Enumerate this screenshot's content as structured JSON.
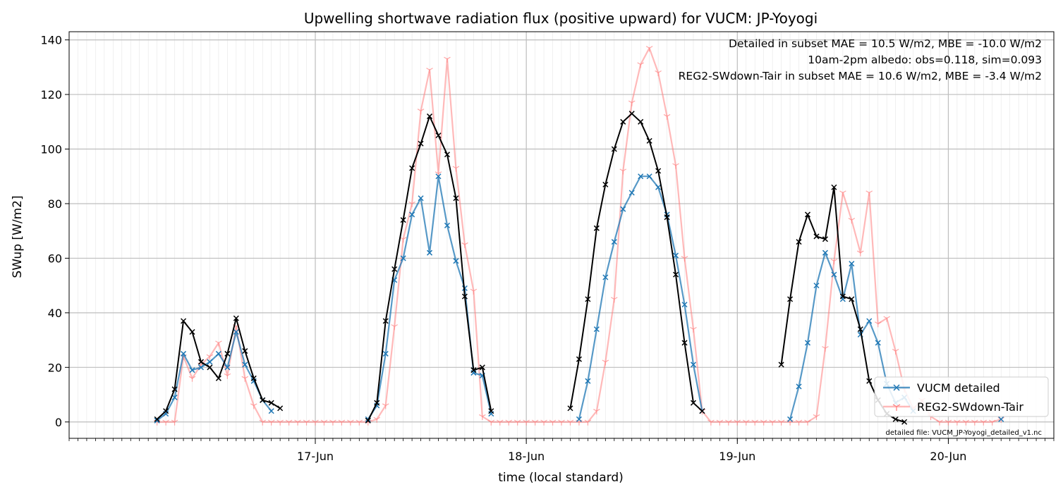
{
  "chart_data": {
    "type": "line",
    "title": "Upwelling shortwave radiation flux (positive upward) for VUCM: JP-Yoyogi",
    "xlabel": "time (local standard)",
    "ylabel": "SWup [W/m2]",
    "xlim": [
      "2021-06-15 20:00",
      "2021-06-20 12:00"
    ],
    "ylim": [
      -6,
      143
    ],
    "yticks": [
      0,
      20,
      40,
      60,
      80,
      100,
      120,
      140
    ],
    "xticks": [
      {
        "t": "2021-06-17 00:00",
        "label": "17-Jun"
      },
      {
        "t": "2021-06-18 00:00",
        "label": "18-Jun"
      },
      {
        "t": "2021-06-19 00:00",
        "label": "19-Jun"
      },
      {
        "t": "2021-06-20 00:00",
        "label": "20-Jun"
      }
    ],
    "grid": true,
    "legend_position": "lower-right",
    "annotations": [
      {
        "text": "Detailed in subset MAE = 10.5 W/m2, MBE = -10.0 W/m2",
        "color": "#1f77b4"
      },
      {
        "text": "10am-2pm albedo: obs=0.118, sim=0.093",
        "color": "#000000"
      },
      {
        "text": "REG2-SWdown-Tair in subset MAE = 10.6 W/m2, MBE = -3.4 W/m2",
        "color": "#ff0000"
      }
    ],
    "footnote": "detailed file: VUCM_JP-Yoyogi_detailed_v1.nc",
    "series": [
      {
        "name": "REG2-SWdown-Tair",
        "color": "#ff8080",
        "marker": "tri",
        "legend": true,
        "t": [
          "2021-06-16 06:00",
          "2021-06-16 07:00",
          "2021-06-16 08:00",
          "2021-06-16 09:00",
          "2021-06-16 10:00",
          "2021-06-16 11:00",
          "2021-06-16 12:00",
          "2021-06-16 13:00",
          "2021-06-16 14:00",
          "2021-06-16 15:00",
          "2021-06-16 16:00",
          "2021-06-16 17:00",
          "2021-06-16 18:00",
          "2021-06-16 19:00",
          "2021-06-16 20:00",
          "2021-06-16 21:00",
          "2021-06-16 22:00",
          "2021-06-16 23:00",
          "2021-06-17 00:00",
          "2021-06-17 01:00",
          "2021-06-17 02:00",
          "2021-06-17 03:00",
          "2021-06-17 04:00",
          "2021-06-17 05:00",
          "2021-06-17 06:00",
          "2021-06-17 07:00",
          "2021-06-17 08:00",
          "2021-06-17 09:00",
          "2021-06-17 10:00",
          "2021-06-17 11:00",
          "2021-06-17 12:00",
          "2021-06-17 13:00",
          "2021-06-17 14:00",
          "2021-06-17 15:00",
          "2021-06-17 16:00",
          "2021-06-17 17:00",
          "2021-06-17 18:00",
          "2021-06-17 19:00",
          "2021-06-17 20:00",
          "2021-06-17 21:00",
          "2021-06-17 22:00",
          "2021-06-17 23:00",
          "2021-06-18 00:00",
          "2021-06-18 01:00",
          "2021-06-18 02:00",
          "2021-06-18 03:00",
          "2021-06-18 04:00",
          "2021-06-18 05:00",
          "2021-06-18 06:00",
          "2021-06-18 07:00",
          "2021-06-18 08:00",
          "2021-06-18 09:00",
          "2021-06-18 10:00",
          "2021-06-18 11:00",
          "2021-06-18 12:00",
          "2021-06-18 13:00",
          "2021-06-18 14:00",
          "2021-06-18 15:00",
          "2021-06-18 16:00",
          "2021-06-18 17:00",
          "2021-06-18 18:00",
          "2021-06-18 19:00",
          "2021-06-18 20:00",
          "2021-06-18 21:00",
          "2021-06-18 22:00",
          "2021-06-18 23:00",
          "2021-06-19 00:00",
          "2021-06-19 01:00",
          "2021-06-19 02:00",
          "2021-06-19 03:00",
          "2021-06-19 04:00",
          "2021-06-19 05:00",
          "2021-06-19 06:00",
          "2021-06-19 07:00",
          "2021-06-19 08:00",
          "2021-06-19 09:00",
          "2021-06-19 10:00",
          "2021-06-19 11:00",
          "2021-06-19 12:00",
          "2021-06-19 13:00",
          "2021-06-19 14:00",
          "2021-06-19 15:00",
          "2021-06-19 16:00",
          "2021-06-19 17:00",
          "2021-06-19 18:00",
          "2021-06-19 19:00",
          "2021-06-19 20:00",
          "2021-06-19 21:00",
          "2021-06-19 22:00",
          "2021-06-19 23:00",
          "2021-06-20 00:00",
          "2021-06-20 01:00",
          "2021-06-20 02:00",
          "2021-06-20 03:00",
          "2021-06-20 04:00",
          "2021-06-20 05:00",
          "2021-06-20 06:00"
        ],
        "values": [
          0,
          0,
          0,
          24,
          16,
          21,
          24,
          29,
          17,
          35,
          16,
          6,
          0,
          0,
          0,
          0,
          0,
          0,
          0,
          0,
          0,
          0,
          0,
          0,
          0,
          1,
          6,
          35,
          67,
          80,
          114,
          129,
          91,
          133,
          93,
          65,
          48,
          2,
          0,
          0,
          0,
          0,
          0,
          0,
          0,
          0,
          0,
          0,
          0,
          0,
          4,
          22,
          45,
          92,
          117,
          131,
          137,
          128,
          112,
          94,
          60,
          34,
          4,
          0,
          0,
          0,
          0,
          0,
          0,
          0,
          0,
          0,
          0,
          0,
          0,
          2,
          27,
          59,
          84,
          74,
          62,
          84,
          36,
          38,
          26,
          12,
          5,
          8,
          2,
          0,
          0,
          0,
          0,
          0,
          0,
          0,
          1
        ]
      },
      {
        "name": "VUCM detailed",
        "color": "#1f77b4",
        "marker": "x",
        "legend": true,
        "t": [
          "2021-06-16 06:00",
          "2021-06-16 07:00",
          "2021-06-16 08:00",
          "2021-06-16 09:00",
          "2021-06-16 10:00",
          "2021-06-16 11:00",
          "2021-06-16 12:00",
          "2021-06-16 13:00",
          "2021-06-16 14:00",
          "2021-06-16 15:00",
          "2021-06-16 16:00",
          "2021-06-16 17:00",
          "2021-06-16 18:00",
          "2021-06-16 19:00",
          "2021-06-17 06:00",
          "2021-06-17 07:00",
          "2021-06-17 08:00",
          "2021-06-17 09:00",
          "2021-06-17 10:00",
          "2021-06-17 11:00",
          "2021-06-17 12:00",
          "2021-06-17 13:00",
          "2021-06-17 14:00",
          "2021-06-17 15:00",
          "2021-06-17 16:00",
          "2021-06-17 17:00",
          "2021-06-17 18:00",
          "2021-06-17 19:00",
          "2021-06-17 20:00",
          "2021-06-18 06:00",
          "2021-06-18 07:00",
          "2021-06-18 08:00",
          "2021-06-18 09:00",
          "2021-06-18 10:00",
          "2021-06-18 11:00",
          "2021-06-18 12:00",
          "2021-06-18 13:00",
          "2021-06-18 14:00",
          "2021-06-18 15:00",
          "2021-06-18 16:00",
          "2021-06-18 17:00",
          "2021-06-18 18:00",
          "2021-06-18 19:00",
          "2021-06-18 20:00",
          "2021-06-19 06:00",
          "2021-06-19 07:00",
          "2021-06-19 08:00",
          "2021-06-19 09:00",
          "2021-06-19 10:00",
          "2021-06-19 11:00",
          "2021-06-19 12:00",
          "2021-06-19 13:00",
          "2021-06-19 14:00",
          "2021-06-19 15:00",
          "2021-06-19 16:00",
          "2021-06-19 17:00",
          "2021-06-19 18:00",
          "2021-06-19 19:00",
          "2021-06-19 20:00",
          "2021-06-20 06:00"
        ],
        "values": [
          0.5,
          3,
          9,
          25,
          19,
          20,
          22,
          25,
          20,
          33,
          21,
          15,
          8,
          4,
          1,
          6,
          25,
          52,
          60,
          76,
          82,
          62,
          90,
          72,
          59,
          49,
          18,
          17,
          3,
          1,
          15,
          34,
          53,
          66,
          78,
          84,
          90,
          90,
          86,
          76,
          61,
          43,
          21,
          4,
          1,
          13,
          29,
          50,
          62,
          54,
          45,
          58,
          32,
          37,
          29,
          14,
          7,
          9,
          4,
          1
        ]
      },
      {
        "name": "",
        "color": "#000000",
        "marker": "x",
        "legend": false,
        "t": [
          "2021-06-16 06:00",
          "2021-06-16 07:00",
          "2021-06-16 08:00",
          "2021-06-16 09:00",
          "2021-06-16 10:00",
          "2021-06-16 11:00",
          "2021-06-16 12:00",
          "2021-06-16 13:00",
          "2021-06-16 14:00",
          "2021-06-16 15:00",
          "2021-06-16 16:00",
          "2021-06-16 17:00",
          "2021-06-16 18:00",
          "2021-06-16 19:00",
          "2021-06-16 20:00",
          "2021-06-17 06:00",
          "2021-06-17 07:00",
          "2021-06-17 08:00",
          "2021-06-17 09:00",
          "2021-06-17 10:00",
          "2021-06-17 11:00",
          "2021-06-17 12:00",
          "2021-06-17 13:00",
          "2021-06-17 14:00",
          "2021-06-17 15:00",
          "2021-06-17 16:00",
          "2021-06-17 17:00",
          "2021-06-17 18:00",
          "2021-06-17 19:00",
          "2021-06-17 20:00",
          "2021-06-18 05:00",
          "2021-06-18 06:00",
          "2021-06-18 07:00",
          "2021-06-18 08:00",
          "2021-06-18 09:00",
          "2021-06-18 10:00",
          "2021-06-18 11:00",
          "2021-06-18 12:00",
          "2021-06-18 13:00",
          "2021-06-18 14:00",
          "2021-06-18 15:00",
          "2021-06-18 16:00",
          "2021-06-18 17:00",
          "2021-06-18 18:00",
          "2021-06-18 19:00",
          "2021-06-18 20:00",
          "2021-06-19 05:00",
          "2021-06-19 06:00",
          "2021-06-19 07:00",
          "2021-06-19 08:00",
          "2021-06-19 09:00",
          "2021-06-19 10:00",
          "2021-06-19 11:00",
          "2021-06-19 12:00",
          "2021-06-19 13:00",
          "2021-06-19 14:00",
          "2021-06-19 15:00",
          "2021-06-19 16:00",
          "2021-06-19 17:00",
          "2021-06-19 18:00",
          "2021-06-19 19:00"
        ],
        "values": [
          1,
          4,
          12,
          37,
          33,
          22,
          20,
          16,
          25,
          38,
          26,
          16,
          8,
          7,
          5,
          0.5,
          7,
          37,
          56,
          74,
          93,
          102,
          112,
          105,
          98,
          82,
          46,
          19,
          20,
          4,
          5,
          23,
          45,
          71,
          87,
          100,
          110,
          113,
          110,
          103,
          92,
          75,
          54,
          29,
          7,
          4,
          21,
          45,
          66,
          76,
          68,
          67,
          86,
          46,
          45,
          34,
          15,
          8,
          3,
          1,
          0
        ]
      }
    ]
  }
}
